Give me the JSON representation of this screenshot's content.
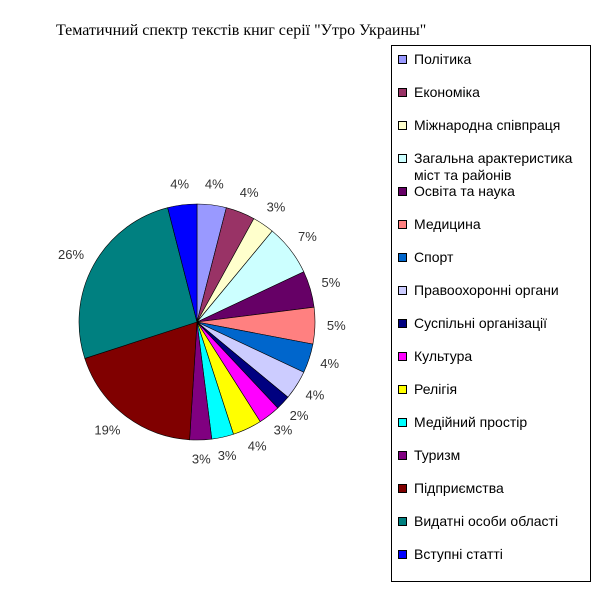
{
  "chart_data": {
    "type": "pie",
    "title": "Тематичний спектр текстів книг серії \"Утро Украины\"",
    "categories": [
      "Політика",
      "Економіка",
      "Міжнародна співпраця",
      "Загальна арактеристика міст та районів",
      "Освіта та наука",
      "Медицина",
      "Спорт",
      "Правоохоронні органи",
      "Суспільні організації",
      "Культура",
      "Релігія",
      "Медійний простір",
      "Туризм",
      "Підприємства",
      "Видатні особи області",
      "Вступні статті"
    ],
    "values": [
      4,
      4,
      3,
      7,
      5,
      5,
      4,
      4,
      2,
      3,
      4,
      3,
      3,
      19,
      26,
      4
    ],
    "value_labels": [
      "4%",
      "4%",
      "3%",
      "7%",
      "5%",
      "5%",
      "4%",
      "4%",
      "2%",
      "3%",
      "4%",
      "3%",
      "3%",
      "19%",
      "26%",
      "4%"
    ],
    "colors": [
      "#9999ff",
      "#993366",
      "#ffffcc",
      "#ccffff",
      "#660066",
      "#ff8080",
      "#0066cc",
      "#ccccff",
      "#000080",
      "#ff00ff",
      "#ffff00",
      "#00ffff",
      "#800080",
      "#800000",
      "#008080",
      "#0000ff"
    ]
  }
}
